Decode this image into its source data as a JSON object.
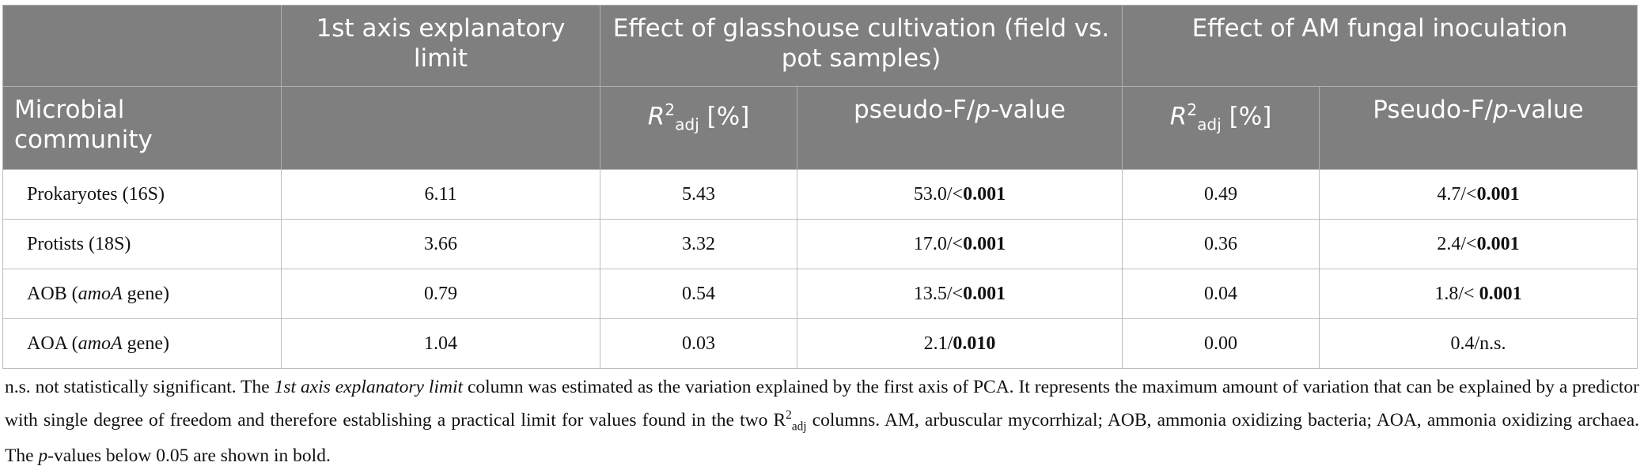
{
  "table": {
    "header": {
      "axis_limit": "1st axis explanatory limit",
      "glasshouse": "Effect of glasshouse cultivation (field vs. pot samples)",
      "am": "Effect of AM fungal inoculation",
      "community": "Microbial community",
      "r2": [
        "R",
        "2",
        "adj",
        " [%]"
      ],
      "pseudo_glass": [
        "pseudo-F/",
        "p",
        "-value"
      ],
      "pseudo_am": [
        "Pseudo-F/",
        "p",
        "-value"
      ]
    },
    "rows": [
      {
        "community": [
          "Prokaryotes (16S)"
        ],
        "limit": "6.11",
        "r2_glass": "5.43",
        "f_glass": [
          "53.0/<",
          "0.001"
        ],
        "r2_am": "0.49",
        "f_am": [
          "4.7/<",
          "0.001"
        ]
      },
      {
        "community": [
          "Protists (18S)"
        ],
        "limit": "3.66",
        "r2_glass": "3.32",
        "f_glass": [
          "17.0/<",
          "0.001"
        ],
        "r2_am": "0.36",
        "f_am": [
          "2.4/<",
          "0.001"
        ]
      },
      {
        "community": [
          "AOB (",
          "amoA",
          " gene)"
        ],
        "limit": "0.79",
        "r2_glass": "0.54",
        "f_glass": [
          "13.5/<",
          "0.001"
        ],
        "r2_am": "0.04",
        "f_am": [
          "1.8/< ",
          "0.001"
        ]
      },
      {
        "community": [
          "AOA (",
          "amoA",
          " gene)"
        ],
        "limit": "1.04",
        "r2_glass": "0.03",
        "f_glass": [
          "2.1/",
          "0.010"
        ],
        "r2_am": "0.00",
        "f_am": [
          "0.4/n.s."
        ]
      }
    ]
  },
  "footnote": [
    "n.s. not statistically significant. The ",
    "1st axis explanatory limit",
    " column was estimated as the variation explained by the first axis of PCA. It represents the maximum amount of variation that can be explained by a predictor with single degree of freedom and therefore establishing a practical limit for values found in the two R",
    "2",
    "adj",
    " columns. AM, arbuscular mycorrhizal; AOB, ammonia oxidizing bacteria; AOA, ammonia oxidizing archaea. The ",
    "p",
    "-values below 0.05 are shown in bold."
  ]
}
